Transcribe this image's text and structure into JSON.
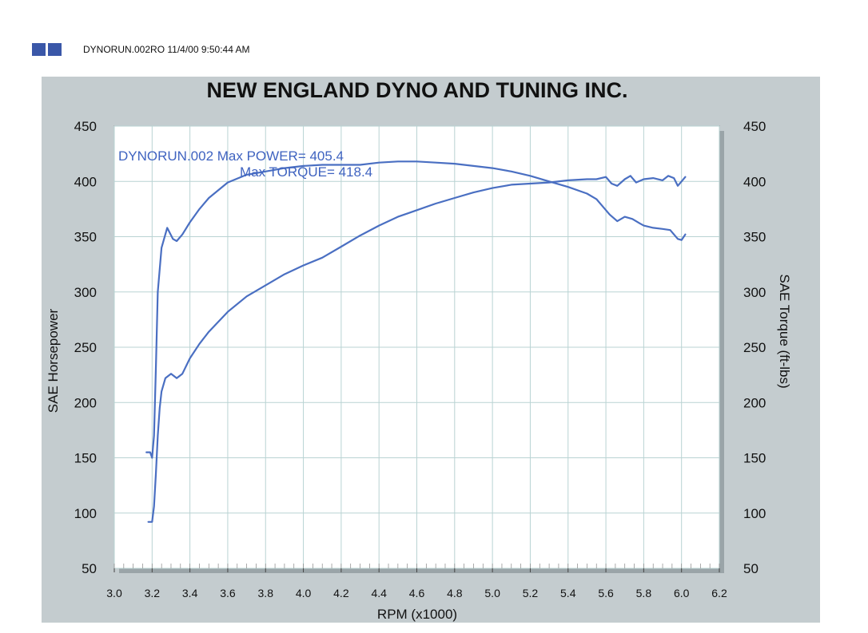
{
  "header": {
    "text": "DYNORUN.002RO  11/4/00 9:50:44 AM",
    "icon": "dyno-logo-icon"
  },
  "colors": {
    "panel": "#c4cccf",
    "plot_bg": "#ffffff",
    "grid": "#b9d3d3",
    "line": "#4a6fc2",
    "text": "#111111",
    "annotation": "#3f63c0"
  },
  "chart_data": {
    "type": "line",
    "title": "NEW ENGLAND DYNO AND TUNING INC.",
    "xlabel": "RPM (x1000)",
    "ylabel_left": "SAE Horsepower",
    "ylabel_right": "SAE Torque (ft-lbs)",
    "xlim": [
      3.0,
      6.2
    ],
    "ylim": [
      50,
      450
    ],
    "x_ticks": [
      "3.0",
      "3.2",
      "3.4",
      "3.6",
      "3.8",
      "4.0",
      "4.2",
      "4.4",
      "4.6",
      "4.8",
      "5.0",
      "5.2",
      "5.4",
      "5.6",
      "5.8",
      "6.0",
      "6.2"
    ],
    "y_ticks": [
      "50",
      "100",
      "150",
      "200",
      "250",
      "300",
      "350",
      "400",
      "450"
    ],
    "grid": true,
    "annotations": [
      "DYNORUN.002  Max POWER= 405.4",
      "Max TORQUE= 418.4"
    ],
    "series": [
      {
        "axis": "left",
        "x": [
          3.18,
          3.2,
          3.21,
          3.22,
          3.23,
          3.24,
          3.25,
          3.27,
          3.3,
          3.33,
          3.36,
          3.4,
          3.45,
          3.5,
          3.6,
          3.7,
          3.8,
          3.9,
          4.0,
          4.1,
          4.2,
          4.3,
          4.4,
          4.5,
          4.6,
          4.7,
          4.8,
          4.9,
          5.0,
          5.1,
          5.2,
          5.3,
          5.4,
          5.5,
          5.55,
          5.6,
          5.63,
          5.66,
          5.7,
          5.73,
          5.76,
          5.8,
          5.85,
          5.9,
          5.93,
          5.96,
          5.98,
          6.0,
          6.02
        ],
        "y": [
          92,
          92,
          106,
          135,
          170,
          195,
          210,
          222,
          226,
          222,
          226,
          240,
          253,
          264,
          282,
          296,
          306,
          316,
          324,
          331,
          341,
          351,
          360,
          368,
          374,
          380,
          385,
          390,
          394,
          397,
          398,
          399,
          401,
          402,
          402,
          404,
          398,
          396,
          402,
          405,
          399,
          402,
          403,
          401,
          405,
          403,
          396,
          400,
          404
        ]
      },
      {
        "axis": "left",
        "x": [
          3.17,
          3.19,
          3.2,
          3.21,
          3.22,
          3.23,
          3.25,
          3.28,
          3.31,
          3.33,
          3.36,
          3.4,
          3.45,
          3.5,
          3.6,
          3.7,
          3.8,
          3.9,
          4.0,
          4.1,
          4.2,
          4.3,
          4.4,
          4.5,
          4.6,
          4.7,
          4.8,
          4.9,
          5.0,
          5.1,
          5.2,
          5.3,
          5.4,
          5.5,
          5.55,
          5.58,
          5.62,
          5.66,
          5.7,
          5.74,
          5.78,
          5.8,
          5.85,
          5.9,
          5.94,
          5.96,
          5.98,
          6.0,
          6.02
        ],
        "y": [
          155,
          155,
          150,
          170,
          230,
          300,
          340,
          358,
          348,
          346,
          352,
          363,
          375,
          385,
          399,
          406,
          409,
          412,
          414,
          415,
          415,
          415,
          417,
          418,
          418,
          417,
          416,
          414,
          412,
          409,
          405,
          400,
          395,
          389,
          384,
          378,
          370,
          364,
          368,
          366,
          362,
          360,
          358,
          357,
          356,
          352,
          348,
          347,
          352
        ]
      }
    ]
  }
}
